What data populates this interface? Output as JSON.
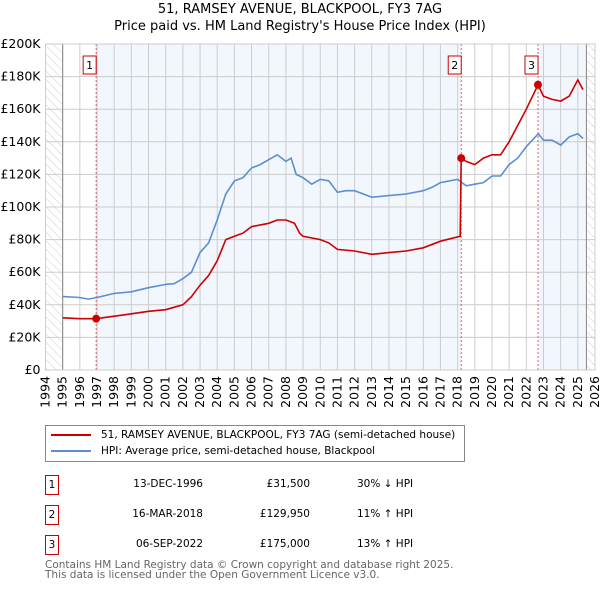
{
  "chart_data": {
    "type": "line",
    "title": "51, RAMSEY AVENUE, BLACKPOOL, FY3 7AG",
    "subtitle": "Price paid vs. HM Land Registry's House Price Index (HPI)",
    "xlim": [
      1994,
      2026
    ],
    "ylim": [
      0,
      200000
    ],
    "x_ticks": [
      "1994",
      "1995",
      "1996",
      "1997",
      "1998",
      "1999",
      "2000",
      "2001",
      "2002",
      "2003",
      "2004",
      "2005",
      "2006",
      "2007",
      "2008",
      "2009",
      "2010",
      "2011",
      "2012",
      "2013",
      "2014",
      "2015",
      "2016",
      "2017",
      "2018",
      "2019",
      "2020",
      "2021",
      "2022",
      "2023",
      "2024",
      "2025",
      "2026"
    ],
    "y_ticks": [
      {
        "v": 0,
        "label": "£0"
      },
      {
        "v": 20000,
        "label": "£20K"
      },
      {
        "v": 40000,
        "label": "£40K"
      },
      {
        "v": 60000,
        "label": "£60K"
      },
      {
        "v": 80000,
        "label": "£80K"
      },
      {
        "v": 100000,
        "label": "£100K"
      },
      {
        "v": 120000,
        "label": "£120K"
      },
      {
        "v": 140000,
        "label": "£140K"
      },
      {
        "v": 160000,
        "label": "£160K"
      },
      {
        "v": 180000,
        "label": "£180K"
      },
      {
        "v": 200000,
        "label": "£200K"
      }
    ],
    "grid": true,
    "series": [
      {
        "name": "51, RAMSEY AVENUE, BLACKPOOL, FY3 7AG (semi-detached house)",
        "color": "#cc0000",
        "x": [
          1995,
          1996,
          1996.95,
          1998,
          1999,
          2000,
          2001,
          2002,
          2002.5,
          2003,
          2003.5,
          2004,
          2004.5,
          2005,
          2005.5,
          2006,
          2007,
          2007.5,
          2008,
          2008.5,
          2008.8,
          2009,
          2010,
          2010.5,
          2011,
          2012,
          2013,
          2014,
          2015,
          2016,
          2017,
          2018.15,
          2018.21,
          2018.5,
          2019,
          2019.5,
          2020,
          2020.5,
          2021,
          2021.5,
          2022,
          2022.68,
          2023,
          2023.5,
          2024,
          2024.5,
          2025,
          2025.3
        ],
        "y": [
          32000,
          31500,
          31500,
          33000,
          34500,
          36000,
          37000,
          40000,
          45000,
          52000,
          58000,
          67000,
          80000,
          82000,
          84000,
          88000,
          90000,
          92000,
          92000,
          90000,
          84000,
          82000,
          80000,
          78000,
          74000,
          73000,
          71000,
          72000,
          73000,
          75000,
          79000,
          82000,
          129950,
          128000,
          126000,
          130000,
          132000,
          132000,
          140000,
          150000,
          160000,
          175000,
          168000,
          166000,
          165000,
          168000,
          178000,
          172000
        ]
      },
      {
        "name": "HPI: Average price, semi-detached house, Blackpool",
        "color": "#5b8fd0",
        "x": [
          1995,
          1996,
          1996.5,
          1997,
          1998,
          1999,
          2000,
          2001,
          2001.5,
          2002,
          2002.5,
          2003,
          2003.5,
          2004,
          2004.5,
          2005,
          2005.5,
          2006,
          2006.5,
          2007,
          2007.5,
          2008,
          2008.3,
          2008.6,
          2009,
          2009.5,
          2010,
          2010.5,
          2011,
          2011.5,
          2012,
          2013,
          2014,
          2015,
          2016,
          2016.5,
          2017,
          2018,
          2018.5,
          2019,
          2019.5,
          2020,
          2020.5,
          2021,
          2021.5,
          2022,
          2022.7,
          2023,
          2023.5,
          2024,
          2024.5,
          2025,
          2025.3
        ],
        "y": [
          45000,
          44500,
          43500,
          44500,
          47000,
          48000,
          50500,
          52500,
          53000,
          56000,
          60000,
          72000,
          78000,
          92000,
          108000,
          116000,
          118000,
          124000,
          126000,
          129000,
          132000,
          128000,
          130000,
          120000,
          118000,
          114000,
          117000,
          116000,
          109000,
          110000,
          110000,
          106000,
          107000,
          108000,
          110000,
          112000,
          115000,
          117000,
          113000,
          114000,
          115000,
          119000,
          119000,
          126000,
          130000,
          137000,
          145000,
          141000,
          141000,
          138000,
          143000,
          145000,
          142000
        ]
      }
    ],
    "sales": [
      {
        "n": "1",
        "x": 1996.95,
        "price": 31500,
        "date": "13-DEC-1996",
        "price_label": "£31,500",
        "hpi": "30% ↓ HPI"
      },
      {
        "n": "2",
        "x": 2018.21,
        "price": 129950,
        "date": "16-MAR-2018",
        "price_label": "£129,950",
        "hpi": "11% ↑ HPI"
      },
      {
        "n": "3",
        "x": 2022.68,
        "price": 175000,
        "date": "06-SEP-2022",
        "price_label": "£175,000",
        "hpi": "13% ↑ HPI"
      }
    ],
    "legend_placement": "below"
  },
  "footer": {
    "line1": "Contains HM Land Registry data © Crown copyright and database right 2025.",
    "line2": "This data is licensed under the Open Government Licence v3.0."
  }
}
